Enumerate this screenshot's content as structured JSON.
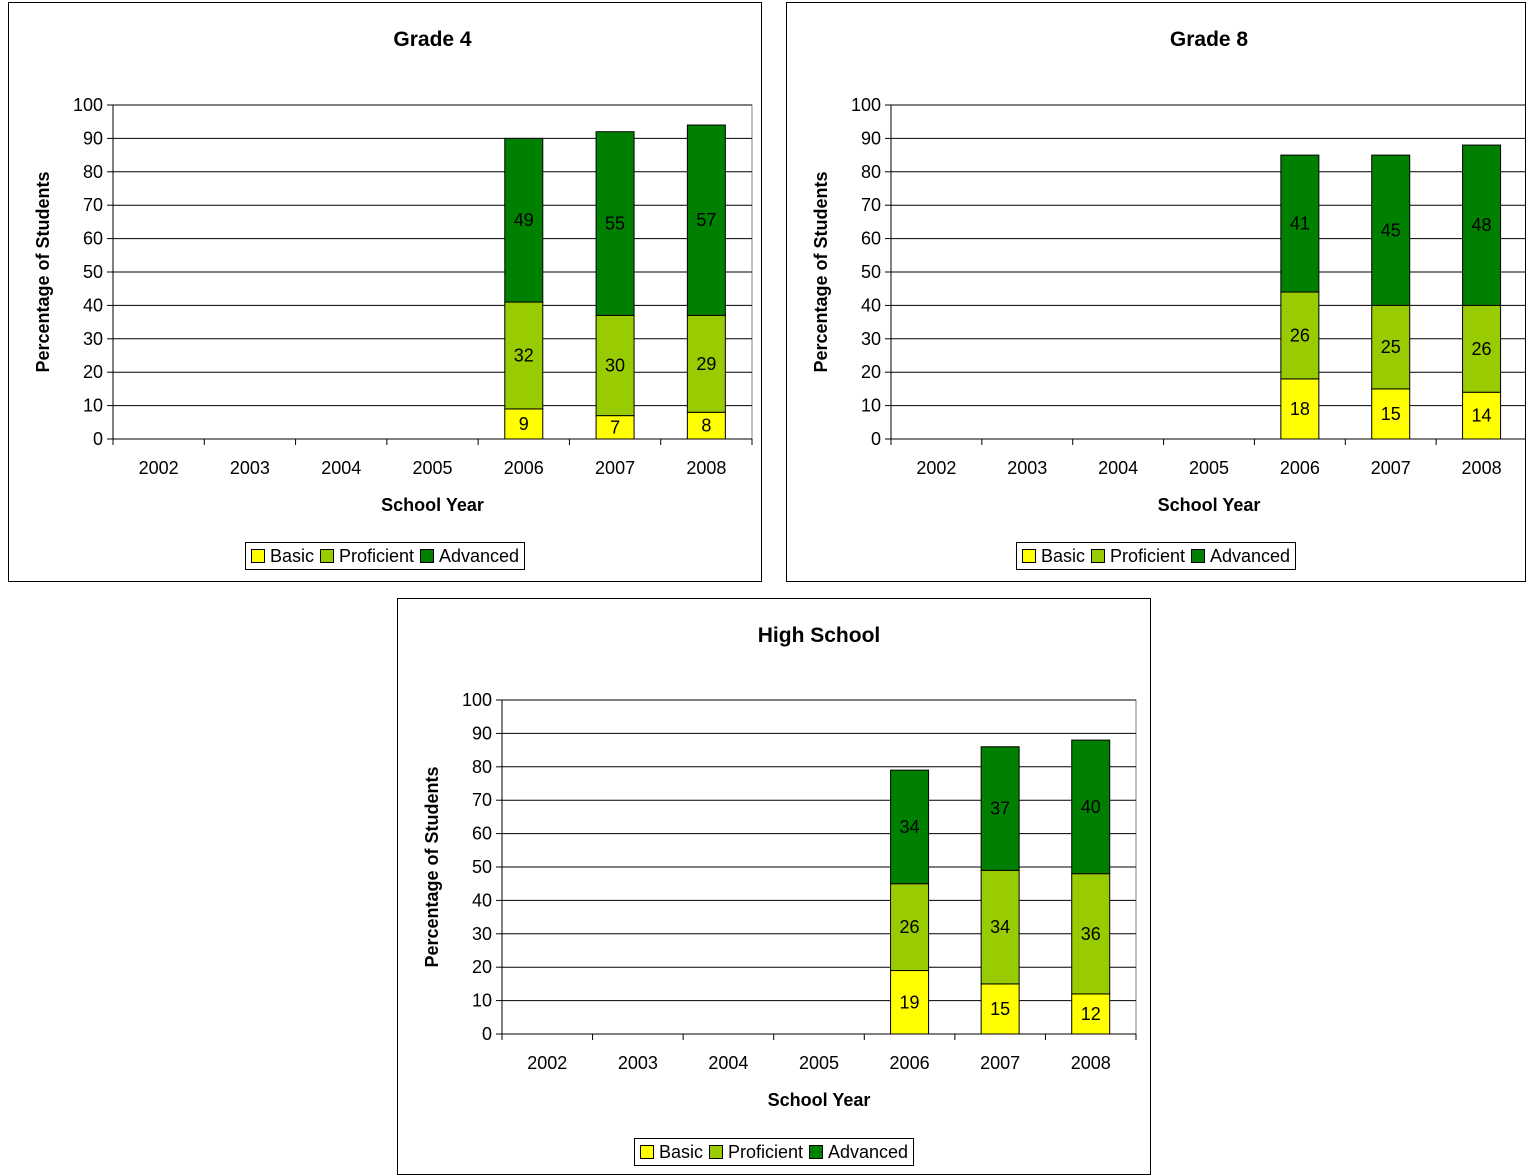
{
  "colors": {
    "basic": "#FFFF00",
    "proficient": "#99CC00",
    "advanced": "#008000"
  },
  "chart_data": [
    {
      "type": "bar",
      "stacked": true,
      "title": "Grade 4",
      "xlabel": "School Year",
      "ylabel": "Percentage of Students",
      "ylim": [
        0,
        100
      ],
      "yticks": [
        "0",
        "10",
        "20",
        "30",
        "40",
        "50",
        "60",
        "70",
        "80",
        "90",
        "100"
      ],
      "categories": [
        "2002",
        "2003",
        "2004",
        "2005",
        "2006",
        "2007",
        "2008"
      ],
      "series": [
        {
          "name": "Basic",
          "values": [
            null,
            null,
            null,
            null,
            9,
            7,
            8
          ]
        },
        {
          "name": "Proficient",
          "values": [
            null,
            null,
            null,
            null,
            32,
            30,
            29
          ]
        },
        {
          "name": "Advanced",
          "values": [
            null,
            null,
            null,
            null,
            49,
            55,
            57
          ]
        }
      ],
      "legend": "bottom"
    },
    {
      "type": "bar",
      "stacked": true,
      "title": "Grade 8",
      "xlabel": "School Year",
      "ylabel": "Percentage of Students",
      "ylim": [
        0,
        100
      ],
      "yticks": [
        "0",
        "10",
        "20",
        "30",
        "40",
        "50",
        "60",
        "70",
        "80",
        "90",
        "100"
      ],
      "categories": [
        "2002",
        "2003",
        "2004",
        "2005",
        "2006",
        "2007",
        "2008"
      ],
      "series": [
        {
          "name": "Basic",
          "values": [
            null,
            null,
            null,
            null,
            18,
            15,
            14
          ]
        },
        {
          "name": "Proficient",
          "values": [
            null,
            null,
            null,
            null,
            26,
            25,
            26
          ]
        },
        {
          "name": "Advanced",
          "values": [
            null,
            null,
            null,
            null,
            41,
            45,
            48
          ]
        }
      ],
      "legend": "bottom"
    },
    {
      "type": "bar",
      "stacked": true,
      "title": "High School",
      "xlabel": "School Year",
      "ylabel": "Percentage of Students",
      "ylim": [
        0,
        100
      ],
      "yticks": [
        "0",
        "10",
        "20",
        "30",
        "40",
        "50",
        "60",
        "70",
        "80",
        "90",
        "100"
      ],
      "categories": [
        "2002",
        "2003",
        "2004",
        "2005",
        "2006",
        "2007",
        "2008"
      ],
      "series": [
        {
          "name": "Basic",
          "values": [
            null,
            null,
            null,
            null,
            19,
            15,
            12
          ]
        },
        {
          "name": "Proficient",
          "values": [
            null,
            null,
            null,
            null,
            26,
            34,
            36
          ]
        },
        {
          "name": "Advanced",
          "values": [
            null,
            null,
            null,
            null,
            34,
            37,
            40
          ]
        }
      ],
      "legend": "bottom"
    }
  ]
}
